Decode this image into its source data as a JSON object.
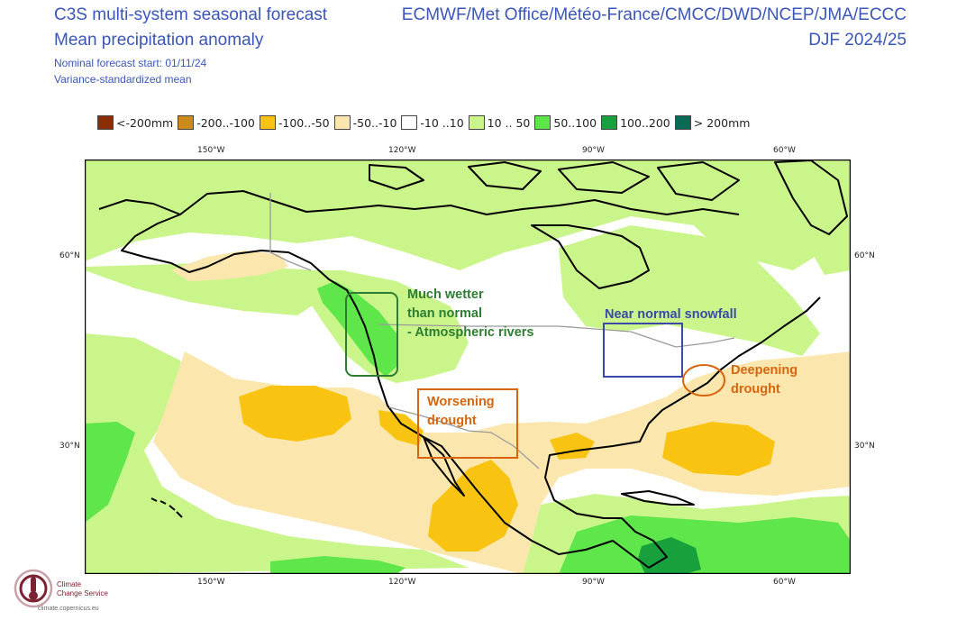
{
  "header": {
    "title_line1": "C3S multi-system seasonal forecast",
    "title_line2": "Mean precipitation anomaly",
    "start": "Nominal forecast start: 01/11/24",
    "method": "Variance-standardized mean",
    "centers": "ECMWF/Met Office/Météo-France/CMCC/DWD/NCEP/JMA/ECCC",
    "season": "DJF 2024/25"
  },
  "legend": [
    {
      "label": "<-200mm",
      "color": "#8b2e05"
    },
    {
      "label": "-200..-100",
      "color": "#cc8a1a"
    },
    {
      "label": "-100..-50",
      "color": "#f9c411"
    },
    {
      "label": "-50..-10",
      "color": "#fbe7ae"
    },
    {
      "label": "-10 ..10",
      "color": "#ffffff"
    },
    {
      "label": "10 .. 50",
      "color": "#c9f58a"
    },
    {
      "label": "50..100",
      "color": "#5ee64a"
    },
    {
      "label": "100..200",
      "color": "#17a03c"
    },
    {
      "label": "> 200mm",
      "color": "#0b6a55"
    }
  ],
  "axes": {
    "lon_labels": [
      "150°W",
      "120°W",
      "90°W",
      "60°W"
    ],
    "lat_labels": [
      "60°N",
      "30°N"
    ]
  },
  "annotations": {
    "pnw_line1": "Much wetter",
    "pnw_line2": "than normal",
    "pnw_line3": "- Atmospheric rivers",
    "greatlakes": "Near normal snowfall",
    "southwest_line1": "Worsening",
    "southwest_line2": "drought",
    "northeast_line1": "Deepening",
    "northeast_line2": "drought"
  },
  "colors": {
    "header_blue": "#3a56b8",
    "annotation_green": "#2e7d32",
    "annotation_blue": "#3b4aa8",
    "annotation_orange": "#d8650e"
  },
  "logo": {
    "line1": "Climate",
    "line2": "Change Service",
    "url": "climate.copernicus.eu"
  }
}
